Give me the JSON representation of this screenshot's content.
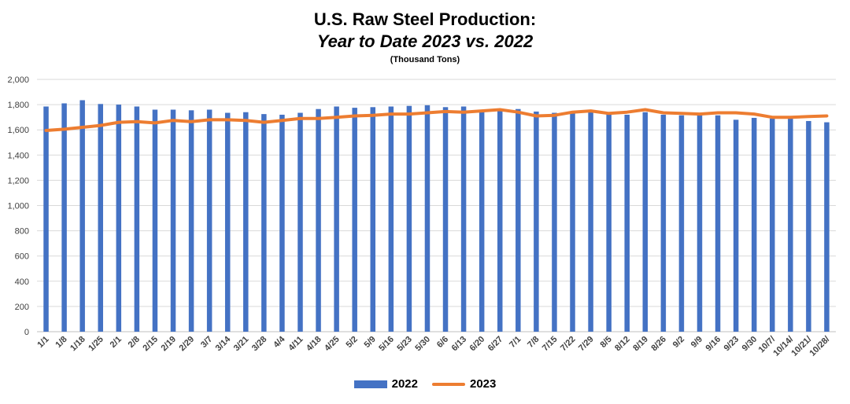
{
  "chart_data": {
    "type": "bar",
    "title": "U.S. Raw Steel Production:",
    "subtitle": "Year to Date 2023 vs. 2022",
    "units": "(Thousand Tons)",
    "ylim": [
      0,
      2000
    ],
    "yticks": [
      0,
      200,
      400,
      600,
      800,
      1000,
      1200,
      1400,
      1600,
      1800,
      2000
    ],
    "ytick_labels": [
      "0",
      "200",
      "400",
      "600",
      "800",
      "1,000",
      "1,200",
      "1,400",
      "1,600",
      "1,800",
      "2,000"
    ],
    "grid": true,
    "legend_position": "bottom",
    "categories": [
      "1/1",
      "1/8",
      "1/18",
      "1/25",
      "2/1",
      "2/8",
      "2/15",
      "2/19",
      "2/29",
      "3/7",
      "3/14",
      "3/21",
      "3/28",
      "4/4",
      "4/11",
      "4/18",
      "4/25",
      "5/2",
      "5/9",
      "5/16",
      "5/23",
      "5/30",
      "6/6",
      "6/13",
      "6/20",
      "6/27",
      "7/1",
      "7/8",
      "7/15",
      "7/22",
      "7/29",
      "8/5",
      "8/12",
      "8/19",
      "8/26",
      "9/2",
      "9/9",
      "9/16",
      "9/23",
      "9/30",
      "10/7/",
      "10/14/",
      "10/21/",
      "10/28/"
    ],
    "series": [
      {
        "name": "2022",
        "type": "bar",
        "color": "#4472C4",
        "values": [
          1785,
          1810,
          1835,
          1805,
          1800,
          1785,
          1760,
          1760,
          1755,
          1760,
          1735,
          1740,
          1725,
          1720,
          1735,
          1765,
          1785,
          1775,
          1780,
          1785,
          1790,
          1795,
          1780,
          1785,
          1750,
          1750,
          1765,
          1745,
          1735,
          1745,
          1740,
          1725,
          1720,
          1740,
          1720,
          1715,
          1715,
          1715,
          1680,
          1695,
          1690,
          1690,
          1670,
          1660
        ]
      },
      {
        "name": "2023",
        "type": "line",
        "color": "#ED7D31",
        "values": [
          1595,
          1605,
          1620,
          1635,
          1660,
          1665,
          1655,
          1675,
          1665,
          1680,
          1680,
          1675,
          1660,
          1675,
          1690,
          1690,
          1700,
          1710,
          1715,
          1725,
          1725,
          1735,
          1745,
          1740,
          1750,
          1760,
          1740,
          1710,
          1715,
          1740,
          1750,
          1730,
          1740,
          1760,
          1735,
          1730,
          1725,
          1735,
          1735,
          1725,
          1700,
          1700,
          1705,
          1710
        ]
      }
    ]
  },
  "legend": {
    "item_2022": "2022",
    "item_2023": "2023"
  }
}
